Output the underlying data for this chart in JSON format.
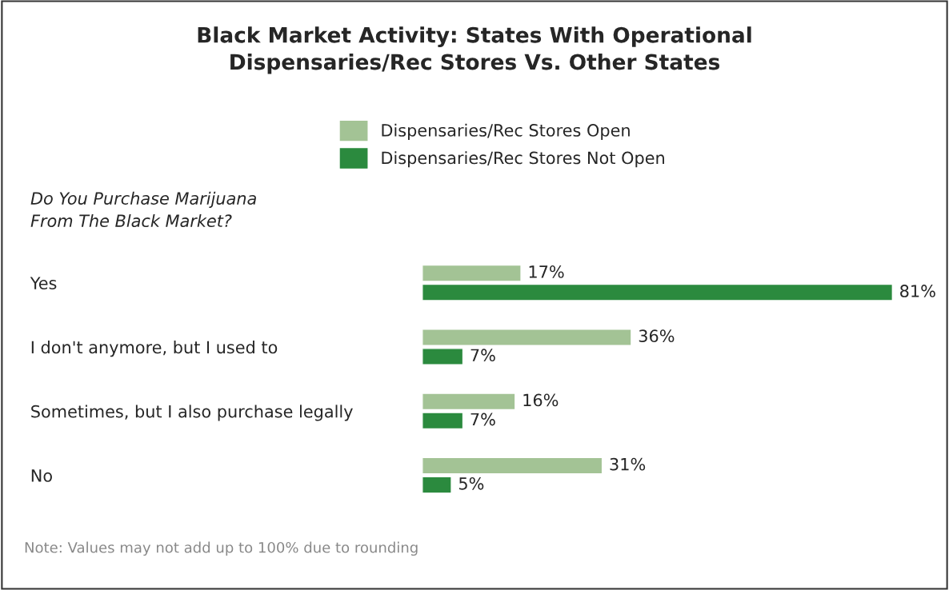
{
  "chart_data": {
    "type": "bar",
    "orientation": "horizontal",
    "title": "Black Market Activity: States With Operational\nDispensaries/Rec Stores Vs. Other States",
    "ylabel": "Do You Purchase Marijuana\nFrom The Black Market?",
    "categories": [
      "Yes",
      "I don't anymore, but I used to",
      "Sometimes, but I also purchase legally",
      "No"
    ],
    "series": [
      {
        "name": "Dispensaries/Rec Stores Open",
        "color": "#a3c395",
        "values": [
          17,
          36,
          16,
          31
        ],
        "value_labels": [
          "17%",
          "36%",
          "16%",
          "31%"
        ]
      },
      {
        "name": "Dispensaries/Rec Stores Not Open",
        "color": "#2b8a3e",
        "values": [
          81,
          7,
          7,
          5
        ],
        "value_labels": [
          "81%",
          "7%",
          "7%",
          "5%"
        ]
      }
    ],
    "legend": "top",
    "grid": false,
    "tick_labels": "y",
    "annotations": [
      "Note: Values may not add up to 100% due to rounding"
    ]
  }
}
